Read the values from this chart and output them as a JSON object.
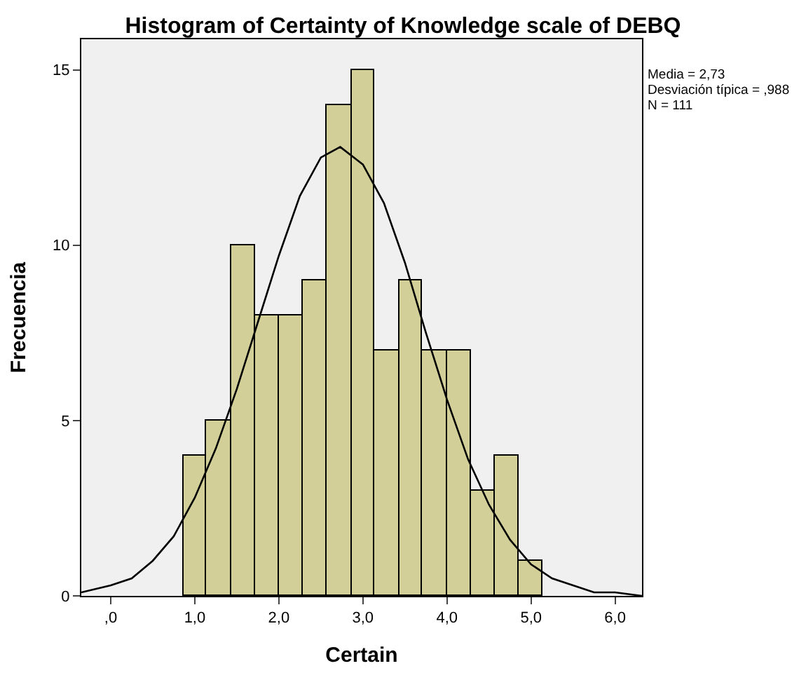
{
  "chart_data": {
    "type": "histogram",
    "title": "Histogram of Certainty of Knowledge scale of DEBQ",
    "xlabel": "Certain",
    "ylabel": "Frecuencia",
    "bins": [
      0.86,
      1.14,
      1.43,
      1.71,
      2.0,
      2.29,
      2.57,
      2.86,
      3.14,
      3.43,
      3.71,
      4.0,
      4.29,
      4.57,
      4.86,
      5.14
    ],
    "values": [
      4,
      5,
      10,
      8,
      8,
      9,
      14,
      15,
      7,
      9,
      7,
      7,
      3,
      4,
      1
    ],
    "color": "#d3cf99",
    "series": [
      {
        "type": "line",
        "color": "#000000",
        "x": [
          -0.35,
          0.0,
          0.25,
          0.5,
          0.75,
          1.0,
          1.25,
          1.5,
          1.75,
          2.0,
          2.25,
          2.5,
          2.73,
          3.0,
          3.25,
          3.5,
          3.75,
          4.0,
          4.25,
          4.5,
          4.75,
          5.0,
          5.25,
          5.5,
          5.75,
          6.0,
          6.32
        ],
        "values": [
          0.1,
          0.3,
          0.5,
          1.0,
          1.7,
          2.8,
          4.2,
          5.9,
          7.8,
          9.7,
          11.4,
          12.5,
          12.8,
          12.3,
          11.2,
          9.5,
          7.5,
          5.6,
          3.9,
          2.6,
          1.6,
          0.9,
          0.5,
          0.3,
          0.1,
          0.1,
          0.0
        ]
      }
    ],
    "xlim": [
      -0.35,
      6.32
    ],
    "xticks": [
      {
        "value": 0,
        "label": ",0"
      },
      {
        "value": 1,
        "label": "1,0"
      },
      {
        "value": 2,
        "label": "2,0"
      },
      {
        "value": 3,
        "label": "3,0"
      },
      {
        "value": 4,
        "label": "4,0"
      },
      {
        "value": 5,
        "label": "5,0"
      },
      {
        "value": 6,
        "label": "6,0"
      }
    ],
    "ylim": [
      0,
      15.87
    ],
    "yticks": [
      0,
      5,
      10,
      15
    ],
    "annotations": [
      "Media = 2,73",
      "Desviación típica = ,988",
      "N = 111"
    ]
  }
}
